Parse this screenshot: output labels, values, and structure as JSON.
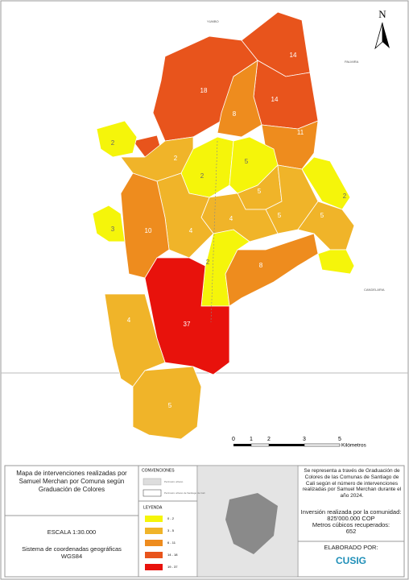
{
  "map": {
    "places": [
      "YUMBO",
      "PALMIRA",
      "CANDELARIA"
    ],
    "north": "N",
    "comuna_labels": [
      "18",
      "14",
      "14",
      "8",
      "11",
      "2",
      "2",
      "2",
      "5",
      "2",
      "5",
      "5",
      "5",
      "4",
      "4",
      "10",
      "3",
      "2",
      "8",
      "37",
      "4",
      "5"
    ],
    "scale": {
      "ticks": [
        "0",
        "1",
        "2",
        "3",
        "5"
      ],
      "unit": "Kilómetros"
    }
  },
  "panel": {
    "title": "Mapa de intervenciones realizadas por Samuel Merchan por Comuna según Graduación de Colores",
    "scale": "ESCALA 1:30.000",
    "crs": "Sistema de coordenadas geográficas WGS84",
    "conventions": {
      "title": "CONVENCIONES",
      "items": [
        "Perímetro urbano",
        "Perímetro urbano de Santiago de Cali"
      ]
    },
    "legend": {
      "title": "LEYENDA",
      "items": [
        "0 - 2",
        "3 - 5",
        "6 - 11",
        "14 - 18",
        "19 - 37"
      ]
    },
    "description": "Se representa a través de Graduación de Colores de las Comunas de Santiago de Cali según el número de intervenciones realizadas por Samuel Merchan durante el año 2024.",
    "investment_label": "Inversión realizada por la comunidad:",
    "investment": "825'000.000 COP",
    "volume_label": "Metros cúbicos recuperados:",
    "volume": "652",
    "credit": "ELABORADO POR:",
    "logo": "CUSIG"
  }
}
